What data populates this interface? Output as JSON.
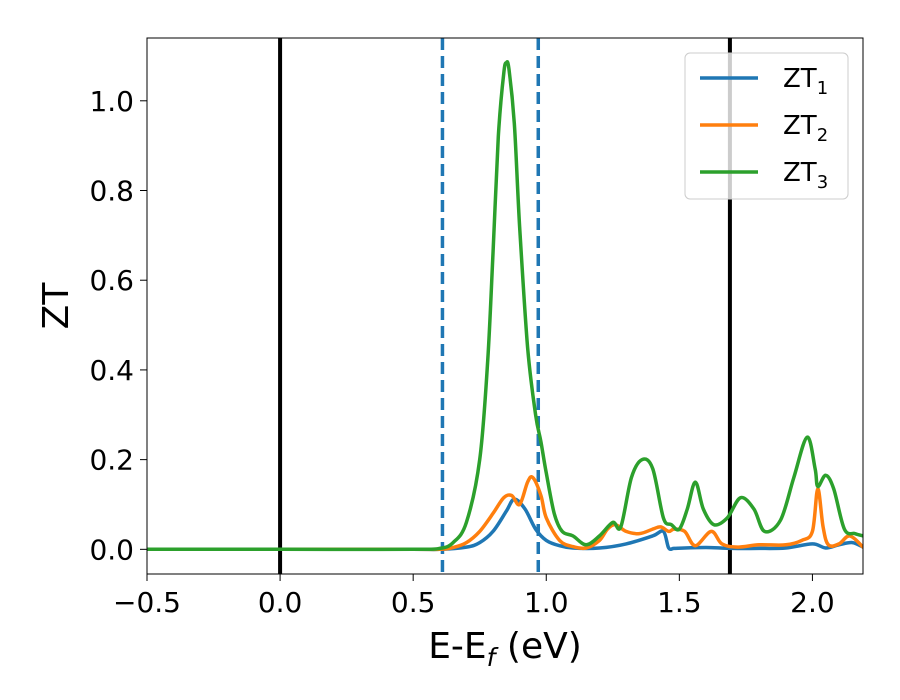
{
  "chart_data": {
    "type": "line",
    "title": "",
    "xlabel": "E-E",
    "xlabel_sub": "f",
    "xlabel_unit": " (eV)",
    "ylabel": "ZT",
    "xlim": [
      -0.5,
      2.19
    ],
    "ylim": [
      -0.055,
      1.14
    ],
    "xticks": [
      -0.5,
      0.0,
      0.5,
      1.0,
      1.5,
      2.0
    ],
    "xtick_labels": [
      "−0.5",
      "0.0",
      "0.5",
      "1.0",
      "1.5",
      "2.0"
    ],
    "yticks": [
      0.0,
      0.2,
      0.4,
      0.6,
      0.8,
      1.0
    ],
    "ytick_labels": [
      "0.0",
      "0.2",
      "0.4",
      "0.6",
      "0.8",
      "1.0"
    ],
    "grid": false,
    "legend_position": "top-right",
    "vlines": [
      {
        "x": 0.0,
        "style": "solid",
        "color": "#000000"
      },
      {
        "x": 1.69,
        "style": "solid",
        "color": "#000000"
      },
      {
        "x": 0.61,
        "style": "dashed",
        "color": "#1f77b4"
      },
      {
        "x": 0.97,
        "style": "dashed",
        "color": "#1f77b4"
      }
    ],
    "series": [
      {
        "name": "ZT",
        "name_sub": "1",
        "color": "#1f77b4",
        "x": [
          -0.5,
          0.0,
          0.5,
          0.6,
          0.7,
          0.75,
          0.8,
          0.85,
          0.88,
          0.92,
          0.96,
          1.0,
          1.05,
          1.1,
          1.2,
          1.3,
          1.4,
          1.44,
          1.46,
          1.48,
          1.52,
          1.6,
          1.7,
          1.8,
          1.9,
          2.0,
          2.05,
          2.1,
          2.15,
          2.19
        ],
        "y": [
          0.0,
          0.0,
          0.0,
          0.0,
          0.005,
          0.015,
          0.04,
          0.085,
          0.112,
          0.09,
          0.045,
          0.02,
          0.008,
          0.003,
          0.003,
          0.012,
          0.03,
          0.04,
          0.003,
          0.002,
          0.003,
          0.004,
          0.002,
          0.002,
          0.003,
          0.012,
          0.003,
          0.01,
          0.015,
          0.005
        ]
      },
      {
        "name": "ZT",
        "name_sub": "2",
        "color": "#ff7f0e",
        "x": [
          -0.5,
          0.0,
          0.5,
          0.6,
          0.65,
          0.7,
          0.75,
          0.8,
          0.84,
          0.87,
          0.9,
          0.93,
          0.95,
          0.98,
          1.0,
          1.05,
          1.1,
          1.15,
          1.2,
          1.23,
          1.26,
          1.3,
          1.35,
          1.4,
          1.43,
          1.46,
          1.48,
          1.52,
          1.56,
          1.62,
          1.66,
          1.72,
          1.8,
          1.9,
          1.96,
          2.0,
          2.02,
          2.04,
          2.06,
          2.1,
          2.14,
          2.19
        ],
        "y": [
          0.0,
          0.0,
          0.0,
          0.0,
          0.004,
          0.015,
          0.04,
          0.08,
          0.115,
          0.12,
          0.1,
          0.15,
          0.16,
          0.12,
          0.07,
          0.02,
          0.006,
          0.003,
          0.02,
          0.045,
          0.055,
          0.04,
          0.035,
          0.045,
          0.05,
          0.04,
          0.045,
          0.04,
          0.008,
          0.04,
          0.012,
          0.005,
          0.01,
          0.01,
          0.02,
          0.04,
          0.135,
          0.05,
          0.01,
          0.012,
          0.03,
          0.005
        ]
      },
      {
        "name": "ZT",
        "name_sub": "3",
        "color": "#2ca02c",
        "x": [
          -0.5,
          0.0,
          0.5,
          0.6,
          0.65,
          0.7,
          0.75,
          0.78,
          0.8,
          0.82,
          0.84,
          0.85,
          0.86,
          0.88,
          0.9,
          0.93,
          0.96,
          0.98,
          1.0,
          1.03,
          1.06,
          1.1,
          1.15,
          1.2,
          1.25,
          1.28,
          1.32,
          1.36,
          1.4,
          1.44,
          1.47,
          1.5,
          1.53,
          1.56,
          1.59,
          1.63,
          1.68,
          1.73,
          1.78,
          1.82,
          1.88,
          1.93,
          1.98,
          2.01,
          2.02,
          2.05,
          2.08,
          2.12,
          2.16,
          2.19
        ],
        "y": [
          0.0,
          0.0,
          0.0,
          0.002,
          0.015,
          0.06,
          0.2,
          0.42,
          0.66,
          0.92,
          1.06,
          1.085,
          1.07,
          0.95,
          0.72,
          0.45,
          0.3,
          0.24,
          0.17,
          0.08,
          0.04,
          0.03,
          0.01,
          0.03,
          0.06,
          0.05,
          0.16,
          0.2,
          0.18,
          0.07,
          0.055,
          0.045,
          0.09,
          0.15,
          0.09,
          0.055,
          0.07,
          0.115,
          0.09,
          0.04,
          0.065,
          0.16,
          0.25,
          0.18,
          0.14,
          0.165,
          0.135,
          0.045,
          0.035,
          0.03
        ]
      }
    ]
  }
}
